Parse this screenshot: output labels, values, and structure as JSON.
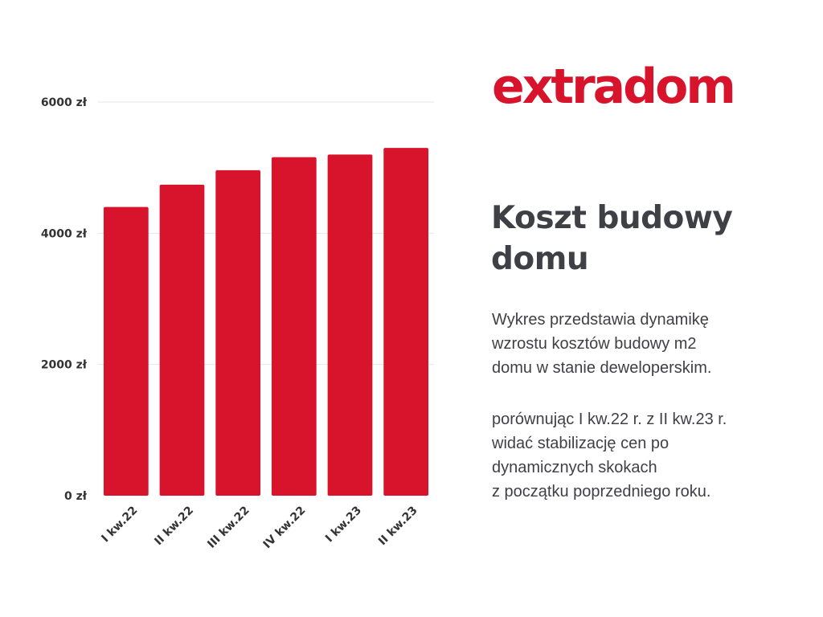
{
  "brand": {
    "logo_text": "extradom",
    "color": "#d7142b"
  },
  "headline": {
    "lines": [
      "Koszt budowy",
      "domu"
    ]
  },
  "description": {
    "paragraph1": [
      "Wykres przedstawia dynamikę",
      "wzrostu kosztów budowy m2",
      "domu w stanie deweloperskim."
    ],
    "paragraph2": [
      "porównując I kw.22 r. z II kw.23 r.",
      "widać stabilizację cen po",
      "dynamicznych skokach",
      "z początku poprzedniego roku."
    ]
  },
  "chart_data": {
    "type": "bar",
    "categories": [
      "I kw.22",
      "II kw.22",
      "III kw.22",
      "IV kw.22",
      "I kw.23",
      "II kw.23"
    ],
    "values": [
      4400,
      4740,
      4960,
      5160,
      5200,
      5300
    ],
    "title": "",
    "xlabel": "",
    "ylabel": "",
    "ylim": [
      0,
      6000
    ],
    "yticks": [
      0,
      2000,
      4000,
      6000
    ],
    "ytick_labels": [
      "0 zł",
      "2000 zł",
      "4000 zł",
      "6000 zł"
    ],
    "grid": true,
    "bar_color": "#d7142b",
    "grid_color": "#e6e6e6",
    "legend": "none"
  }
}
